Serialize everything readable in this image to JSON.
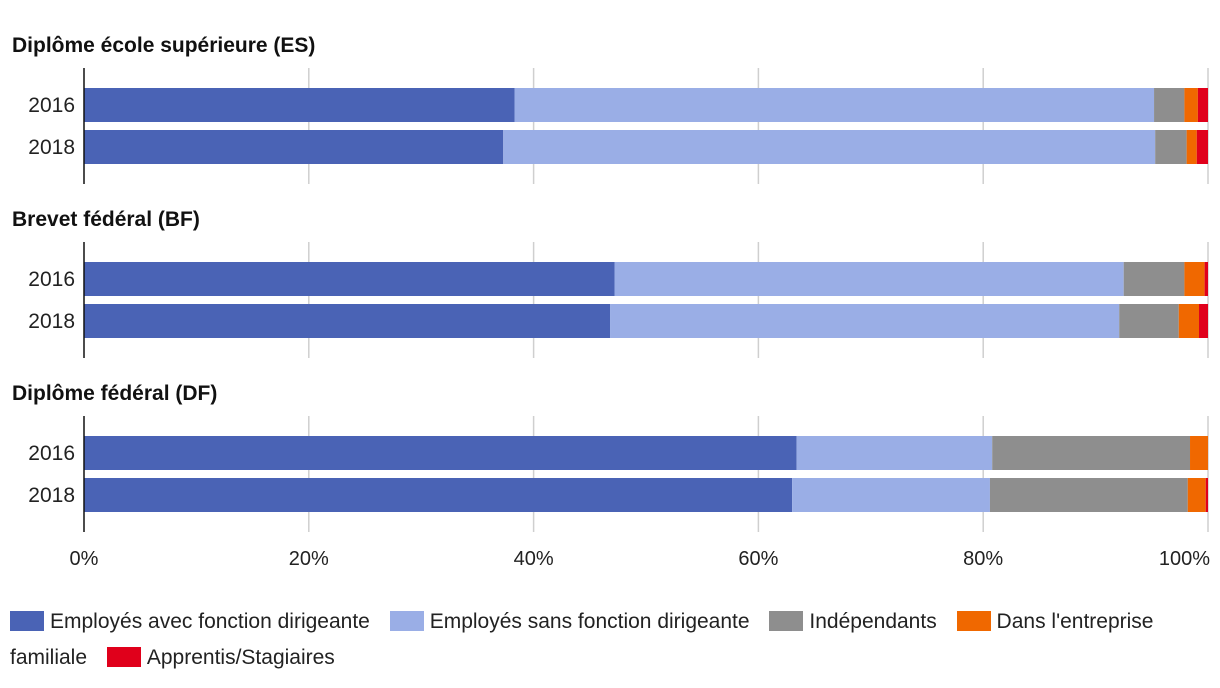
{
  "chart_data": {
    "type": "bar",
    "orientation": "horizontal",
    "stacked": true,
    "panels": [
      {
        "title": "Diplôme école supérieure (ES)",
        "categories": [
          "2016",
          "2018"
        ],
        "series": [
          {
            "name": "Employés avec fonction dirigeante",
            "values": [
              38.3,
              37.3
            ]
          },
          {
            "name": "Employés sans fonction dirigeante",
            "values": [
              56.9,
              58.0
            ]
          },
          {
            "name": "Indépendants",
            "values": [
              2.7,
              2.8
            ]
          },
          {
            "name": "Dans l'entreprise familiale",
            "values": [
              1.2,
              0.9
            ]
          },
          {
            "name": "Apprentis/Stagiaires",
            "values": [
              0.9,
              1.0
            ]
          }
        ]
      },
      {
        "title": "Brevet fédéral (BF)",
        "categories": [
          "2016",
          "2018"
        ],
        "series": [
          {
            "name": "Employés avec fonction dirigeante",
            "values": [
              47.2,
              46.8
            ]
          },
          {
            "name": "Employés sans fonction dirigeante",
            "values": [
              45.3,
              45.3
            ]
          },
          {
            "name": "Indépendants",
            "values": [
              5.4,
              5.3
            ]
          },
          {
            "name": "Dans l'entreprise familiale",
            "values": [
              1.8,
              1.8
            ]
          },
          {
            "name": "Apprentis/Stagiaires",
            "values": [
              0.3,
              0.8
            ]
          }
        ]
      },
      {
        "title": "Diplôme fédéral (DF)",
        "categories": [
          "2016",
          "2018"
        ],
        "series": [
          {
            "name": "Employés avec fonction dirigeante",
            "values": [
              63.4,
              63.0
            ]
          },
          {
            "name": "Employés sans fonction dirigeante",
            "values": [
              17.4,
              17.6
            ]
          },
          {
            "name": "Indépendants",
            "values": [
              17.6,
              17.6
            ]
          },
          {
            "name": "Dans l'entreprise familiale",
            "values": [
              1.6,
              1.6
            ]
          },
          {
            "name": "Apprentis/Stagiaires",
            "values": [
              0.0,
              0.2
            ]
          }
        ]
      }
    ],
    "x_ticks": [
      "0%",
      "20%",
      "40%",
      "60%",
      "80%",
      "100%"
    ],
    "xlim": [
      0,
      100
    ],
    "grid": true,
    "legend_placement": "bottom",
    "colors": [
      "#4a63b5",
      "#9aaee6",
      "#8e8e8e",
      "#f06800",
      "#e0001b"
    ],
    "legend": {
      "items": [
        {
          "label": "Employés avec fonction dirigeante",
          "color": "#4a63b5"
        },
        {
          "label": "Employés sans fonction dirigeante",
          "color": "#9aaee6"
        },
        {
          "label": "Indépendants",
          "color": "#8e8e8e"
        },
        {
          "label": "Dans l'entreprise familiale",
          "color": "#f06800"
        },
        {
          "label": "Apprentis/Stagiaires",
          "color": "#e0001b"
        }
      ]
    }
  }
}
